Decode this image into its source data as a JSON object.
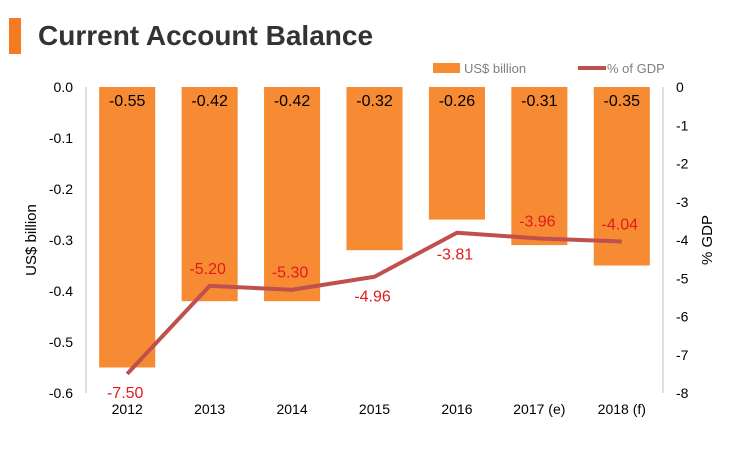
{
  "page": {
    "title": "Current Account Balance",
    "accent_color": "#f47b20"
  },
  "chart_data": {
    "type": "bar",
    "categories": [
      "2012",
      "2013",
      "2014",
      "2015",
      "2016",
      "2017 (e)",
      "2018 (f)"
    ],
    "series": [
      {
        "name": "US$ billion",
        "type": "bar",
        "axis": "left",
        "color": "#f68b33",
        "values": [
          -0.55,
          -0.42,
          -0.42,
          -0.32,
          -0.26,
          -0.31,
          -0.35
        ],
        "labels": [
          "-0.55",
          "-0.42",
          "-0.42",
          "-0.32",
          "-0.26",
          "-0.31",
          "-0.35"
        ]
      },
      {
        "name": "% of GDP",
        "type": "line",
        "axis": "right",
        "color": "#c0504d",
        "label_color": "#e31a1c",
        "values": [
          -7.5,
          -5.2,
          -5.3,
          -4.96,
          -3.81,
          -3.96,
          -4.04
        ],
        "labels": [
          "-7.50",
          "-5.20",
          "-5.30",
          "-4.96",
          "-3.81",
          "-3.96",
          "-4.04"
        ]
      }
    ],
    "ylabel": "US$ billion",
    "y2label": "% GDP",
    "ylim": [
      -0.6,
      0.0
    ],
    "y2lim": [
      -8,
      0
    ],
    "yticks": [
      "0.0",
      "-0.1",
      "-0.2",
      "-0.3",
      "-0.4",
      "-0.5",
      "-0.6"
    ],
    "y2ticks": [
      "0",
      "-1",
      "-2",
      "-3",
      "-4",
      "-5",
      "-6",
      "-7",
      "-8"
    ],
    "grid": false,
    "legend_position": "top-right"
  }
}
